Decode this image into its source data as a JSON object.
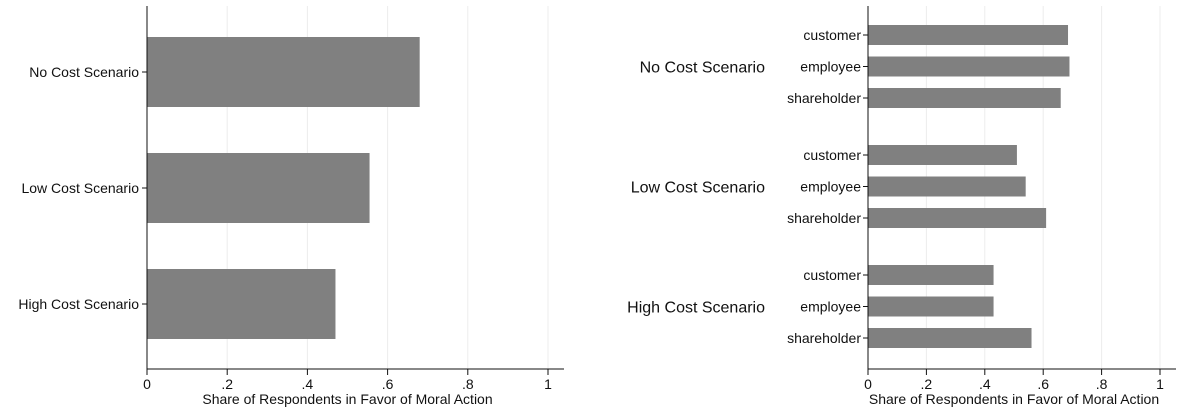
{
  "chart_data": [
    {
      "type": "bar",
      "orientation": "horizontal",
      "categories": [
        "No Cost Scenario",
        "Low Cost Scenario",
        "High Cost Scenario"
      ],
      "values": [
        0.68,
        0.555,
        0.47
      ],
      "xlabel": "Share of Respondents in Favor of Moral Action",
      "ylabel": "",
      "xlim": [
        0,
        1
      ],
      "xticks": [
        0,
        0.2,
        0.4,
        0.6,
        0.8,
        1
      ],
      "xtick_labels": [
        "0",
        ".2",
        ".4",
        ".6",
        ".8",
        "1"
      ],
      "grid": "vertical",
      "bar_color": "#808080"
    },
    {
      "type": "bar",
      "orientation": "horizontal",
      "groups": [
        {
          "label": "No Cost Scenario",
          "categories": [
            "customer",
            "employee",
            "shareholder"
          ],
          "values": [
            0.685,
            0.69,
            0.66
          ]
        },
        {
          "label": "Low Cost Scenario",
          "categories": [
            "customer",
            "employee",
            "shareholder"
          ],
          "values": [
            0.51,
            0.54,
            0.61
          ]
        },
        {
          "label": "High Cost Scenario",
          "categories": [
            "customer",
            "employee",
            "shareholder"
          ],
          "values": [
            0.43,
            0.43,
            0.56
          ]
        }
      ],
      "xlabel": "Share of Respondents in Favor of Moral Action",
      "ylabel": "",
      "xlim": [
        0,
        1
      ],
      "xticks": [
        0,
        0.2,
        0.4,
        0.6,
        0.8,
        1
      ],
      "xtick_labels": [
        "0",
        ".2",
        ".4",
        ".6",
        ".8",
        "1"
      ],
      "grid": "vertical",
      "bar_color": "#808080"
    }
  ]
}
